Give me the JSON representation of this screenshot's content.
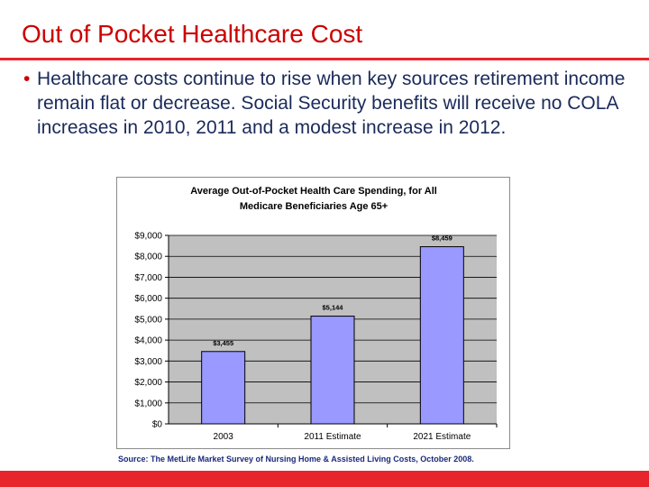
{
  "slide": {
    "title": "Out of Pocket Healthcare Cost",
    "bullet": "Healthcare costs continue to rise when key sources retirement income remain flat or decrease.  Social Security benefits will receive no COLA increases in 2010, 2011 and a modest increase in 2012.",
    "source": "Source: The MetLife Market Survey of Nursing Home & Assisted Living Costs, October 2008.",
    "bullet_symbol": "•"
  },
  "colors": {
    "title": "#cc0000",
    "accent_bar": "#e8252a",
    "bar_fill": "#9999ff",
    "plot_bg": "#c0c0c0",
    "text_navy": "#1a2a5a"
  },
  "chart_data": {
    "type": "bar",
    "title_lines": [
      "Average Out-of-Pocket Health Care Spending, for All",
      "Medicare Beneficiaries Age 65+"
    ],
    "categories": [
      "2003",
      "2011 Estimate",
      "2021 Estimate"
    ],
    "values": [
      3455,
      5144,
      8459
    ],
    "value_labels": [
      "$3,455",
      "$5,144",
      "$8,459"
    ],
    "y_ticks": [
      0,
      1000,
      2000,
      3000,
      4000,
      5000,
      6000,
      7000,
      8000,
      9000
    ],
    "y_tick_labels": [
      "$0",
      "$1,000",
      "$2,000",
      "$3,000",
      "$4,000",
      "$5,000",
      "$6,000",
      "$7,000",
      "$8,000",
      "$9,000"
    ],
    "ylim": [
      0,
      9000
    ],
    "xlabel": "",
    "ylabel": "",
    "grid": true,
    "legend": "none"
  }
}
